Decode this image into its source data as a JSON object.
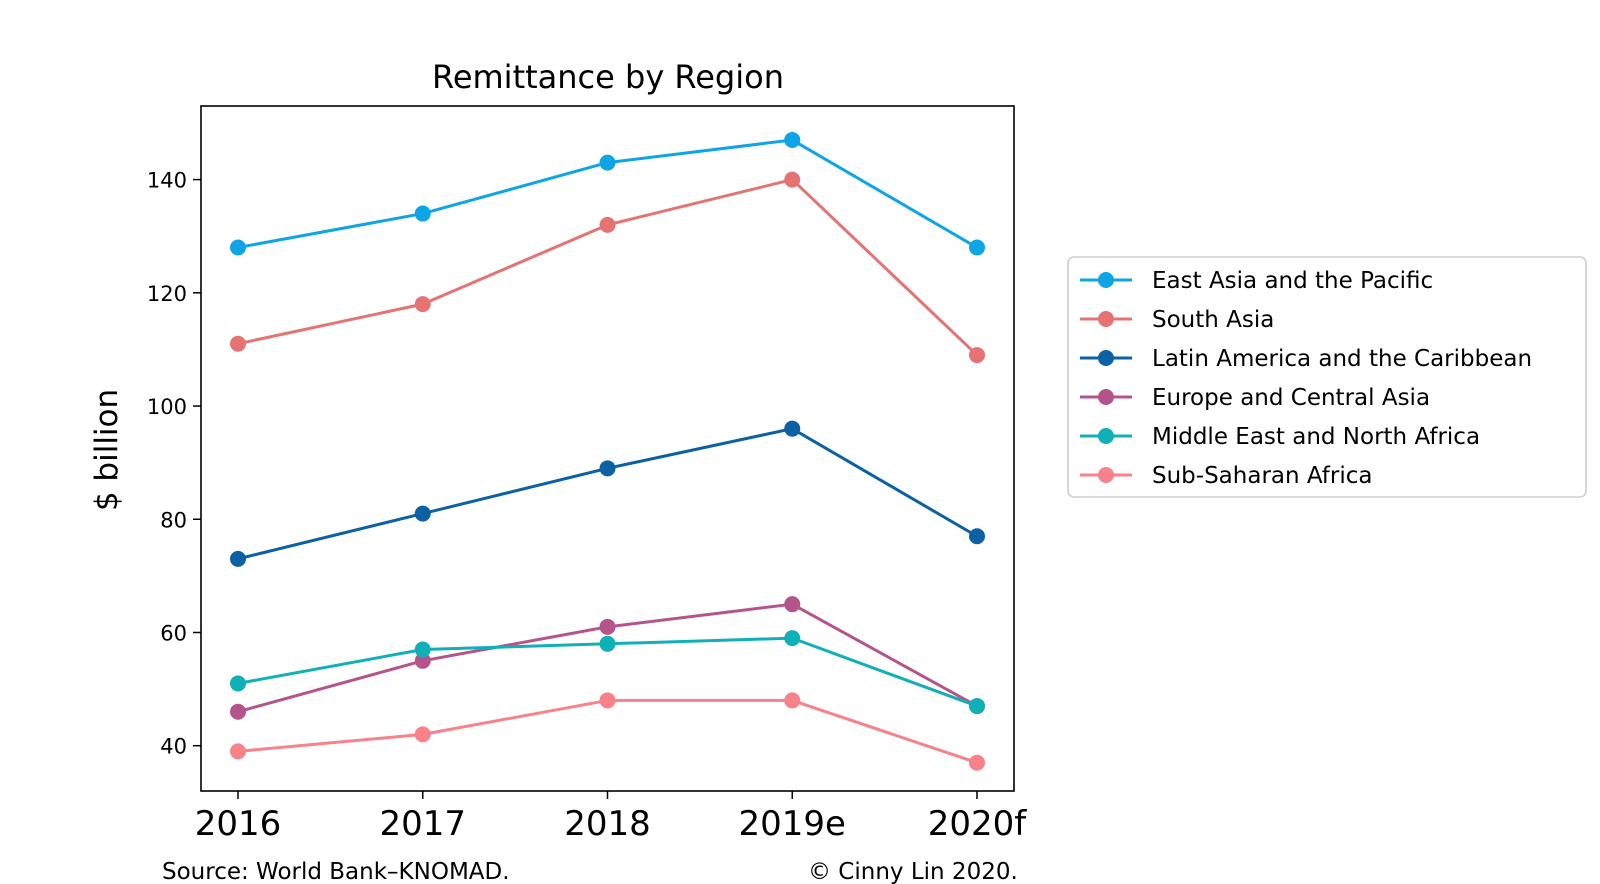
{
  "chart_data": {
    "type": "line",
    "title": "Remittance by Region",
    "xlabel": "",
    "ylabel": "$ billion",
    "categories": [
      "2016",
      "2017",
      "2018",
      "2019e",
      "2020f"
    ],
    "ylim": [
      32,
      153
    ],
    "yticks": [
      40,
      60,
      80,
      100,
      120,
      140
    ],
    "grid": false,
    "legend_position": "right",
    "series": [
      {
        "name": "East Asia and the Pacific",
        "color": "#0ea5e6",
        "values": [
          128,
          134,
          143,
          147,
          128
        ]
      },
      {
        "name": "South Asia",
        "color": "#e57373",
        "values": [
          111,
          118,
          132,
          140,
          109
        ]
      },
      {
        "name": "Latin America and the Caribbean",
        "color": "#0b61a4",
        "values": [
          73,
          81,
          89,
          96,
          77
        ]
      },
      {
        "name": "Europe and Central Asia",
        "color": "#b5548a",
        "values": [
          46,
          55,
          61,
          65,
          47
        ]
      },
      {
        "name": "Middle East and North Africa",
        "color": "#0fb0b8",
        "values": [
          51,
          57,
          58,
          59,
          47
        ]
      },
      {
        "name": "Sub-Saharan Africa",
        "color": "#f7828a",
        "values": [
          39,
          42,
          48,
          48,
          37
        ]
      }
    ]
  },
  "footer": {
    "source": "Source: World Bank–KNOMAD.",
    "copyright": "© Cinny Lin 2020."
  }
}
